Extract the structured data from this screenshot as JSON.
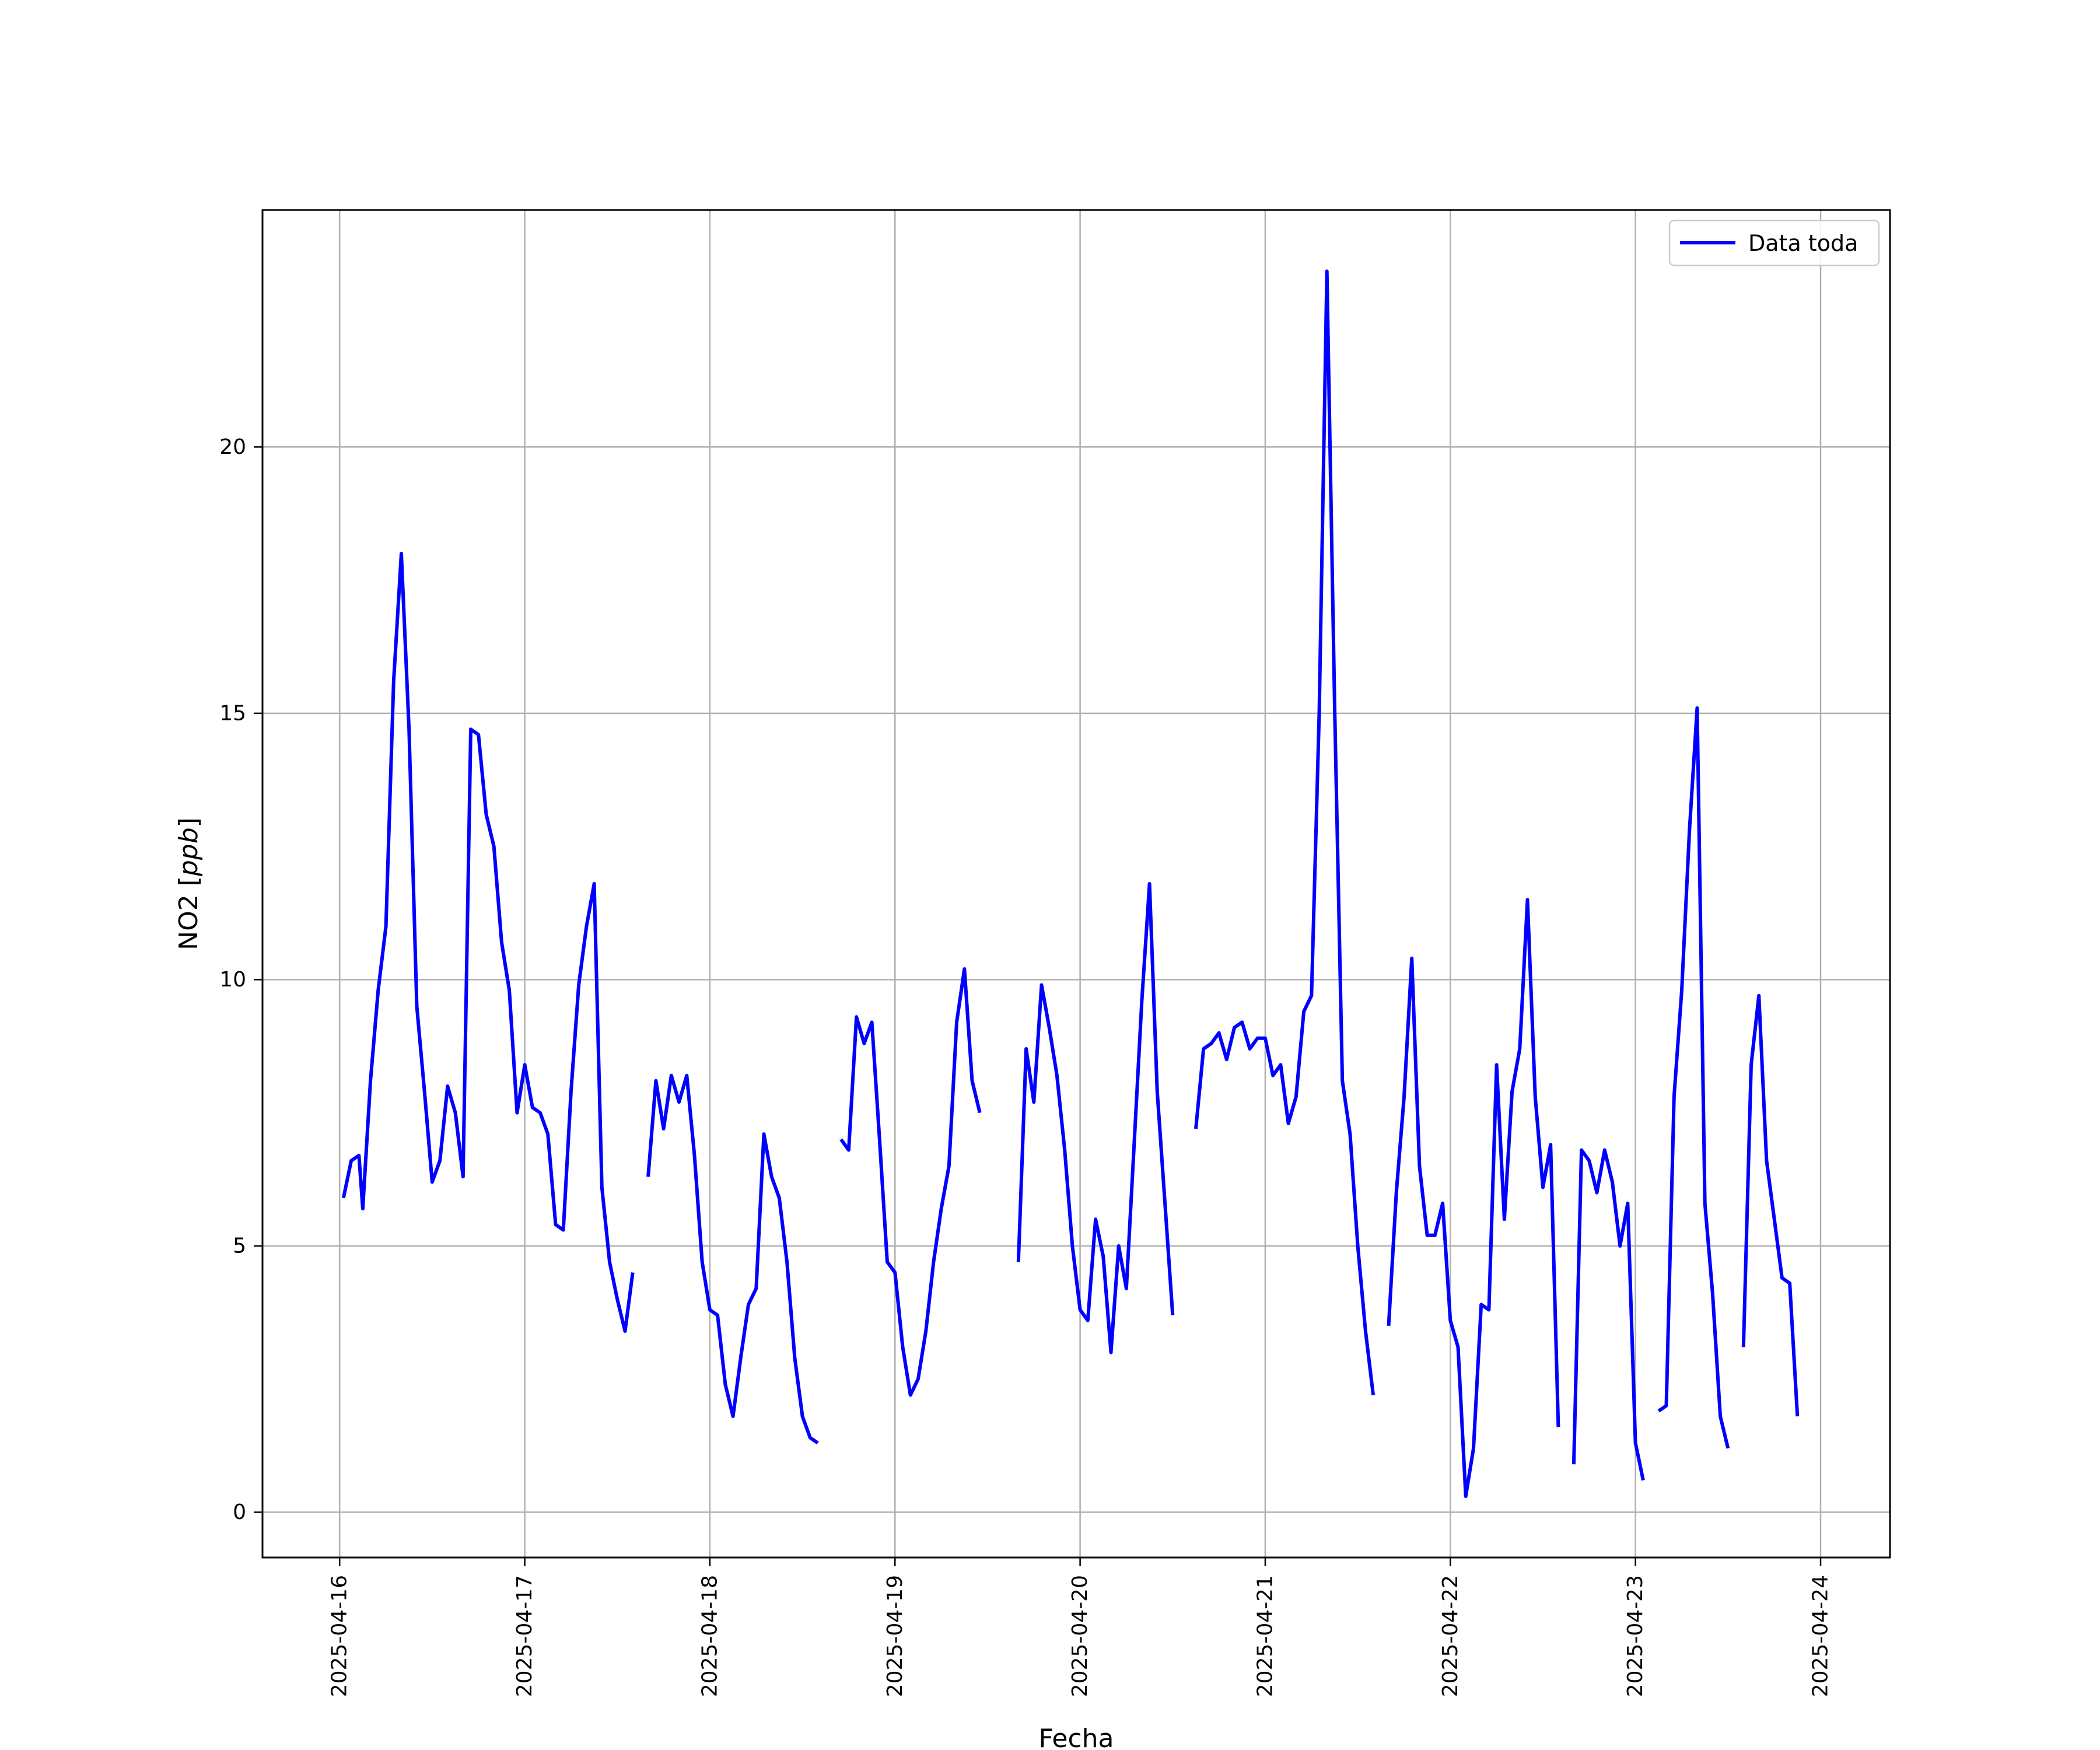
{
  "chart_data": {
    "type": "line",
    "xlabel": "Fecha",
    "ylabel_main": "NO2 [",
    "ylabel_unit": "ppb",
    "ylabel_close": "]",
    "x_ticks": [
      "2025-04-16",
      "2025-04-17",
      "2025-04-18",
      "2025-04-19",
      "2025-04-20",
      "2025-04-21",
      "2025-04-22",
      "2025-04-23",
      "2025-04-24"
    ],
    "y_ticks": [
      0,
      5,
      10,
      15,
      20
    ],
    "xlim": [
      "2025-04-15 14:00",
      "2025-04-24 09:00"
    ],
    "ylim": [
      -0.85,
      24.45
    ],
    "grid": true,
    "legend_position": "top-right",
    "series": [
      {
        "name": "Data toda",
        "color": "#0000ff",
        "segments": [
          [
            [
              "2025-04-16 00:30",
              5.9
            ],
            [
              "2025-04-16 01:30",
              6.6
            ],
            [
              "2025-04-16 02:30",
              6.7
            ],
            [
              "2025-04-16 03:00",
              5.7
            ],
            [
              "2025-04-16 04:00",
              8.1
            ],
            [
              "2025-04-16 05:00",
              9.8
            ],
            [
              "2025-04-16 06:00",
              11.0
            ],
            [
              "2025-04-16 07:00",
              15.6
            ],
            [
              "2025-04-16 08:00",
              18.0
            ],
            [
              "2025-04-16 09:00",
              14.7
            ],
            [
              "2025-04-16 10:00",
              9.5
            ],
            [
              "2025-04-16 11:00",
              7.9
            ],
            [
              "2025-04-16 12:00",
              6.2
            ],
            [
              "2025-04-16 13:00",
              6.6
            ],
            [
              "2025-04-16 14:00",
              8.0
            ],
            [
              "2025-04-16 15:00",
              7.5
            ],
            [
              "2025-04-16 16:00",
              6.3
            ],
            [
              "2025-04-16 17:00",
              14.7
            ],
            [
              "2025-04-16 18:00",
              14.6
            ],
            [
              "2025-04-16 19:00",
              13.1
            ],
            [
              "2025-04-16 20:00",
              12.5
            ],
            [
              "2025-04-16 21:00",
              10.7
            ],
            [
              "2025-04-16 22:00",
              9.8
            ],
            [
              "2025-04-16 23:00",
              7.5
            ],
            [
              "2025-04-17 00:00",
              8.4
            ],
            [
              "2025-04-17 01:00",
              7.6
            ],
            [
              "2025-04-17 02:00",
              7.5
            ],
            [
              "2025-04-17 03:00",
              7.1
            ],
            [
              "2025-04-17 04:00",
              5.4
            ],
            [
              "2025-04-17 05:00",
              5.3
            ],
            [
              "2025-04-17 06:00",
              7.9
            ],
            [
              "2025-04-17 07:00",
              9.9
            ],
            [
              "2025-04-17 08:00",
              11.0
            ],
            [
              "2025-04-17 09:00",
              11.8
            ],
            [
              "2025-04-17 10:00",
              6.1
            ],
            [
              "2025-04-17 11:00",
              4.7
            ],
            [
              "2025-04-17 12:00",
              4.0
            ],
            [
              "2025-04-17 13:00",
              3.4
            ],
            [
              "2025-04-17 14:00",
              4.5
            ]
          ],
          [
            [
              "2025-04-17 16:00",
              6.3
            ],
            [
              "2025-04-17 17:00",
              8.1
            ],
            [
              "2025-04-17 18:00",
              7.2
            ],
            [
              "2025-04-17 19:00",
              8.2
            ],
            [
              "2025-04-17 20:00",
              7.7
            ],
            [
              "2025-04-17 21:00",
              8.2
            ],
            [
              "2025-04-17 22:00",
              6.7
            ],
            [
              "2025-04-17 23:00",
              4.7
            ],
            [
              "2025-04-18 00:00",
              3.8
            ],
            [
              "2025-04-18 01:00",
              3.7
            ],
            [
              "2025-04-18 02:00",
              2.4
            ],
            [
              "2025-04-18 03:00",
              1.8
            ],
            [
              "2025-04-18 04:00",
              2.9
            ],
            [
              "2025-04-18 05:00",
              3.9
            ],
            [
              "2025-04-18 06:00",
              4.2
            ],
            [
              "2025-04-18 07:00",
              7.1
            ],
            [
              "2025-04-18 08:00",
              6.3
            ],
            [
              "2025-04-18 09:00",
              5.9
            ],
            [
              "2025-04-18 10:00",
              4.7
            ],
            [
              "2025-04-18 11:00",
              2.9
            ],
            [
              "2025-04-18 12:00",
              1.8
            ],
            [
              "2025-04-18 13:00",
              1.4
            ],
            [
              "2025-04-18 14:00",
              1.3
            ]
          ],
          [
            [
              "2025-04-18 17:00",
              7.0
            ],
            [
              "2025-04-18 18:00",
              6.8
            ],
            [
              "2025-04-18 19:00",
              9.3
            ],
            [
              "2025-04-18 20:00",
              8.8
            ],
            [
              "2025-04-18 21:00",
              9.2
            ],
            [
              "2025-04-18 22:00",
              7.0
            ],
            [
              "2025-04-18 23:00",
              4.7
            ],
            [
              "2025-04-19 00:00",
              4.5
            ],
            [
              "2025-04-19 01:00",
              3.1
            ],
            [
              "2025-04-19 02:00",
              2.2
            ],
            [
              "2025-04-19 03:00",
              2.5
            ],
            [
              "2025-04-19 04:00",
              3.4
            ],
            [
              "2025-04-19 05:00",
              4.7
            ],
            [
              "2025-04-19 06:00",
              5.7
            ],
            [
              "2025-04-19 07:00",
              6.5
            ],
            [
              "2025-04-19 08:00",
              9.2
            ],
            [
              "2025-04-19 09:00",
              10.2
            ],
            [
              "2025-04-19 10:00",
              8.1
            ],
            [
              "2025-04-19 11:00",
              7.5
            ]
          ],
          [
            [
              "2025-04-19 16:00",
              4.7
            ],
            [
              "2025-04-19 17:00",
              8.7
            ],
            [
              "2025-04-19 18:00",
              7.7
            ],
            [
              "2025-04-19 19:00",
              9.9
            ],
            [
              "2025-04-19 20:00",
              9.1
            ],
            [
              "2025-04-19 21:00",
              8.2
            ],
            [
              "2025-04-19 22:00",
              6.8
            ],
            [
              "2025-04-19 23:00",
              5.0
            ],
            [
              "2025-04-20 00:00",
              3.8
            ],
            [
              "2025-04-20 01:00",
              3.6
            ],
            [
              "2025-04-20 02:00",
              5.5
            ],
            [
              "2025-04-20 03:00",
              4.8
            ],
            [
              "2025-04-20 04:00",
              3.0
            ],
            [
              "2025-04-20 05:00",
              5.0
            ],
            [
              "2025-04-20 06:00",
              4.2
            ],
            [
              "2025-04-20 07:00",
              6.9
            ],
            [
              "2025-04-20 08:00",
              9.6
            ],
            [
              "2025-04-20 09:00",
              11.8
            ],
            [
              "2025-04-20 10:00",
              7.9
            ],
            [
              "2025-04-20 11:00",
              5.8
            ],
            [
              "2025-04-20 12:00",
              3.7
            ]
          ],
          [
            [
              "2025-04-20 15:00",
              7.2
            ],
            [
              "2025-04-20 16:00",
              8.7
            ],
            [
              "2025-04-20 17:00",
              8.8
            ],
            [
              "2025-04-20 18:00",
              9.0
            ],
            [
              "2025-04-20 19:00",
              8.5
            ],
            [
              "2025-04-20 20:00",
              9.1
            ],
            [
              "2025-04-20 21:00",
              9.2
            ],
            [
              "2025-04-20 22:00",
              8.7
            ],
            [
              "2025-04-20 23:00",
              8.9
            ],
            [
              "2025-04-21 00:00",
              8.9
            ],
            [
              "2025-04-21 01:00",
              8.2
            ],
            [
              "2025-04-21 02:00",
              8.4
            ],
            [
              "2025-04-21 03:00",
              7.3
            ],
            [
              "2025-04-21 04:00",
              7.8
            ],
            [
              "2025-04-21 05:00",
              9.4
            ],
            [
              "2025-04-21 06:00",
              9.7
            ],
            [
              "2025-04-21 07:00",
              15.0
            ],
            [
              "2025-04-21 08:00",
              23.3
            ],
            [
              "2025-04-21 09:00",
              15.1
            ],
            [
              "2025-04-21 10:00",
              8.1
            ],
            [
              "2025-04-21 11:00",
              7.1
            ],
            [
              "2025-04-21 12:00",
              5.0
            ],
            [
              "2025-04-21 13:00",
              3.4
            ],
            [
              "2025-04-21 14:00",
              2.2
            ]
          ],
          [
            [
              "2025-04-21 16:00",
              3.5
            ],
            [
              "2025-04-21 17:00",
              6.0
            ],
            [
              "2025-04-21 18:00",
              7.8
            ],
            [
              "2025-04-21 19:00",
              10.4
            ],
            [
              "2025-04-21 20:00",
              6.5
            ],
            [
              "2025-04-21 21:00",
              5.2
            ],
            [
              "2025-04-21 22:00",
              5.2
            ],
            [
              "2025-04-21 23:00",
              5.8
            ],
            [
              "2025-04-22 00:00",
              3.6
            ],
            [
              "2025-04-22 01:00",
              3.1
            ],
            [
              "2025-04-22 02:00",
              0.3
            ],
            [
              "2025-04-22 03:00",
              1.2
            ],
            [
              "2025-04-22 04:00",
              3.9
            ],
            [
              "2025-04-22 05:00",
              3.8
            ],
            [
              "2025-04-22 06:00",
              8.4
            ],
            [
              "2025-04-22 07:00",
              5.5
            ],
            [
              "2025-04-22 08:00",
              7.9
            ],
            [
              "2025-04-22 09:00",
              8.7
            ],
            [
              "2025-04-22 10:00",
              11.5
            ],
            [
              "2025-04-22 11:00",
              7.8
            ],
            [
              "2025-04-22 12:00",
              6.1
            ],
            [
              "2025-04-22 13:00",
              6.9
            ],
            [
              "2025-04-22 14:00",
              1.6
            ]
          ],
          [
            [
              "2025-04-22 16:00",
              0.9
            ],
            [
              "2025-04-22 17:00",
              6.8
            ],
            [
              "2025-04-22 18:00",
              6.6
            ],
            [
              "2025-04-22 19:00",
              6.0
            ],
            [
              "2025-04-22 20:00",
              6.8
            ],
            [
              "2025-04-22 21:00",
              6.2
            ],
            [
              "2025-04-22 22:00",
              5.0
            ],
            [
              "2025-04-22 23:00",
              5.8
            ],
            [
              "2025-04-23 00:00",
              1.3
            ],
            [
              "2025-04-23 01:00",
              0.6
            ]
          ],
          [
            [
              "2025-04-23 03:00",
              1.9
            ],
            [
              "2025-04-23 04:00",
              2.0
            ],
            [
              "2025-04-23 05:00",
              7.8
            ],
            [
              "2025-04-23 06:00",
              9.8
            ],
            [
              "2025-04-23 07:00",
              12.8
            ],
            [
              "2025-04-23 08:00",
              15.1
            ],
            [
              "2025-04-23 09:00",
              5.8
            ],
            [
              "2025-04-23 10:00",
              4.1
            ],
            [
              "2025-04-23 11:00",
              1.8
            ],
            [
              "2025-04-23 12:00",
              1.2
            ]
          ],
          [
            [
              "2025-04-23 14:00",
              3.1
            ],
            [
              "2025-04-23 15:00",
              8.4
            ],
            [
              "2025-04-23 16:00",
              9.7
            ],
            [
              "2025-04-23 17:00",
              6.6
            ],
            [
              "2025-04-23 18:00",
              5.5
            ],
            [
              "2025-04-23 19:00",
              4.4
            ],
            [
              "2025-04-23 20:00",
              4.3
            ],
            [
              "2025-04-23 21:00",
              1.8
            ]
          ]
        ]
      }
    ]
  }
}
